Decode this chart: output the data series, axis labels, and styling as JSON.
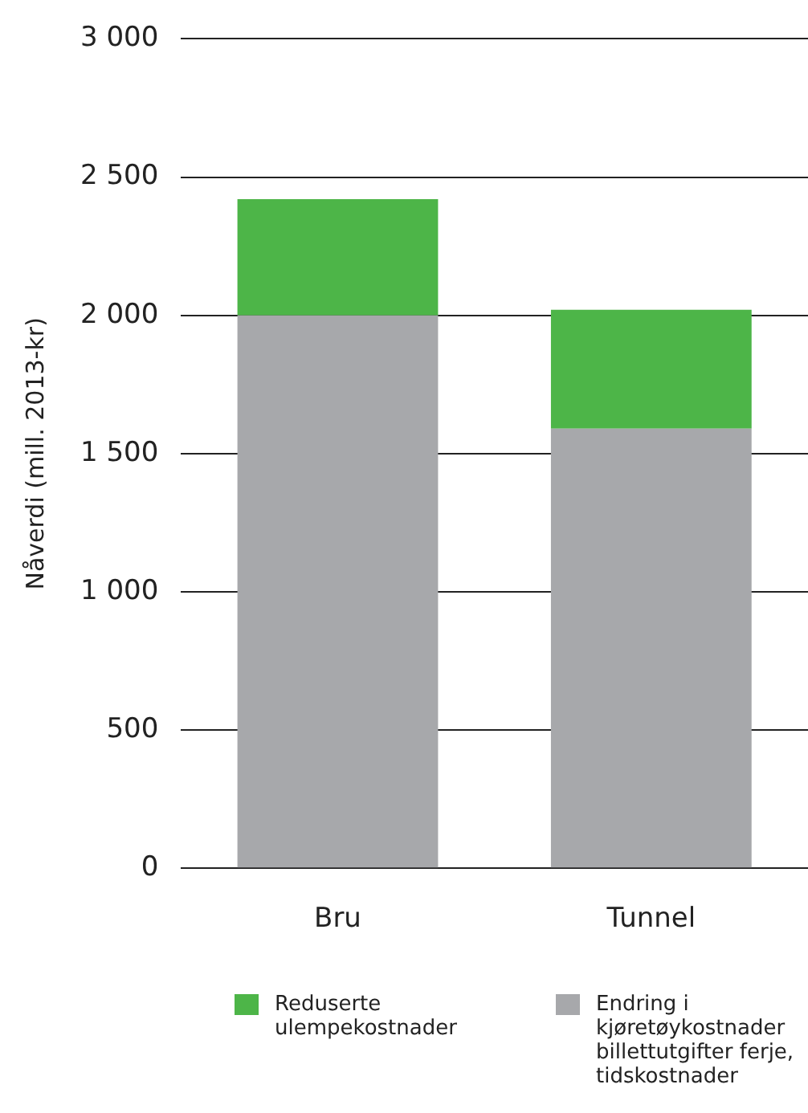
{
  "chart_data": {
    "type": "bar",
    "stacked": true,
    "ylabel": "Nåverdi (mill. 2013-kr)",
    "categories": [
      "Bru",
      "Tunnel"
    ],
    "series": [
      {
        "name": "Endring i kjøretøykostnader billettutgifter ferje, tidskostnader",
        "color": "#a7a8ab",
        "values": [
          2000,
          1590
        ]
      },
      {
        "name": "Reduserte ulempekostnader",
        "color": "#4db548",
        "values": [
          420,
          430
        ]
      }
    ],
    "ylim": [
      0,
      3000
    ],
    "yticks": [
      0,
      500,
      {
        "value": 1000,
        "label": "1 000"
      },
      {
        "value": 1500,
        "label": "1 500"
      },
      {
        "value": 2000,
        "label": "2 000"
      },
      {
        "value": 2500,
        "label": "2 500"
      },
      {
        "value": 3000,
        "label": "3 000"
      }
    ],
    "grid": "y",
    "legend": "bottom"
  }
}
